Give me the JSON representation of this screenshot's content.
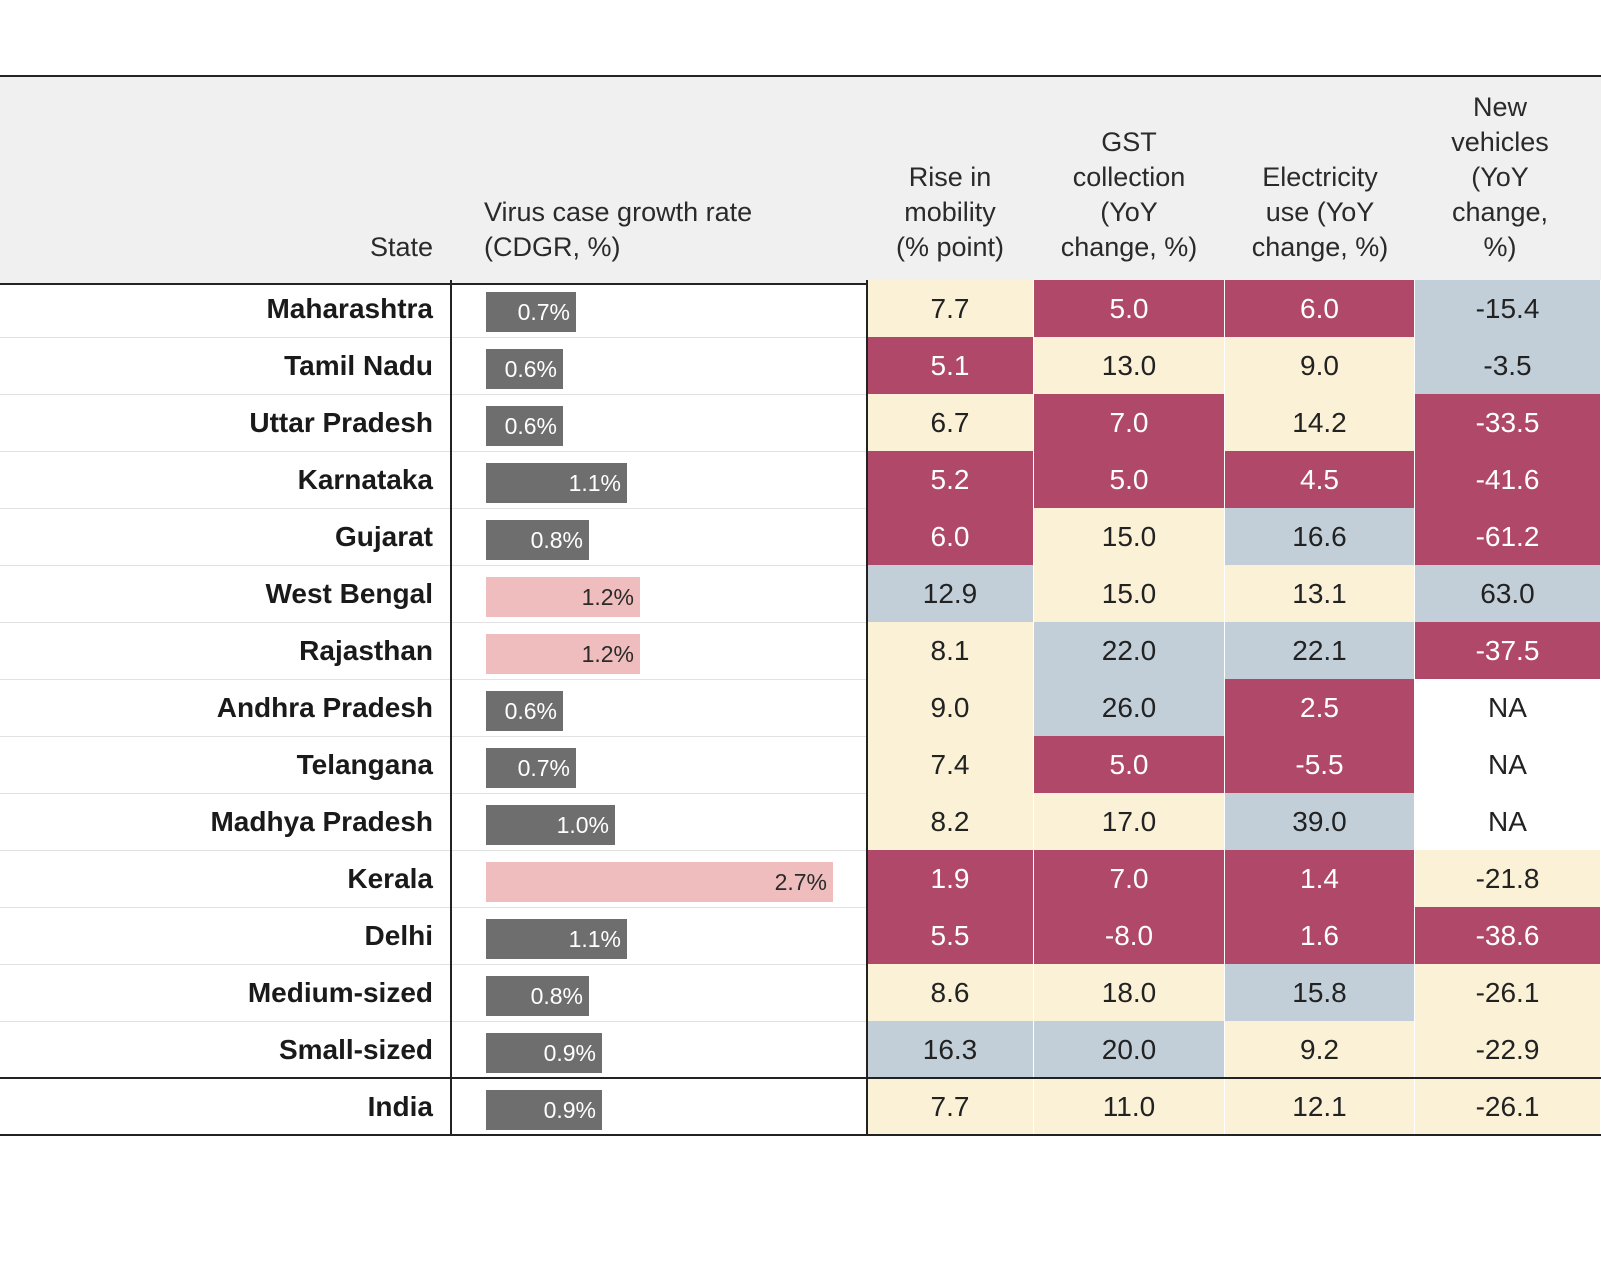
{
  "header": {
    "state": "State",
    "cdgr": "Virus case growth rate (CDGR, %)",
    "mobility": "Rise in mobility (% point)",
    "gst": "GST collection (YoY change, %)",
    "electricity": "Electricity use (YoY change, %)",
    "vehicles": "New vehicles (YoY change, %)"
  },
  "colors": {
    "bar_dark": "#6e6e6e",
    "bar_pink": "#efbdbd",
    "low": "#b0486a",
    "mid": "#fbf1d6",
    "high": "#c2cfd8",
    "na": "#ffffff"
  },
  "chart_data": {
    "type": "table",
    "columns": [
      "State",
      "Virus case growth rate (CDGR, %)",
      "Rise in mobility (% point)",
      "GST collection (YoY change, %)",
      "Electricity use (YoY change, %)",
      "New vehicles (YoY change, %)"
    ],
    "rows": [
      {
        "state": "Maharashtra",
        "cdgr": 0.7,
        "cdgr_label": "0.7%",
        "cdgr_color": "dark",
        "mobility": {
          "v": "7.7",
          "c": "mid"
        },
        "gst": {
          "v": "5.0",
          "c": "low"
        },
        "electricity": {
          "v": "6.0",
          "c": "low"
        },
        "vehicles": {
          "v": "-15.4",
          "c": "high"
        }
      },
      {
        "state": "Tamil Nadu",
        "cdgr": 0.6,
        "cdgr_label": "0.6%",
        "cdgr_color": "dark",
        "mobility": {
          "v": "5.1",
          "c": "low"
        },
        "gst": {
          "v": "13.0",
          "c": "mid"
        },
        "electricity": {
          "v": "9.0",
          "c": "mid"
        },
        "vehicles": {
          "v": "-3.5",
          "c": "high"
        }
      },
      {
        "state": "Uttar Pradesh",
        "cdgr": 0.6,
        "cdgr_label": "0.6%",
        "cdgr_color": "dark",
        "mobility": {
          "v": "6.7",
          "c": "mid"
        },
        "gst": {
          "v": "7.0",
          "c": "low"
        },
        "electricity": {
          "v": "14.2",
          "c": "mid"
        },
        "vehicles": {
          "v": "-33.5",
          "c": "low"
        }
      },
      {
        "state": "Karnataka",
        "cdgr": 1.1,
        "cdgr_label": "1.1%",
        "cdgr_color": "dark",
        "mobility": {
          "v": "5.2",
          "c": "low"
        },
        "gst": {
          "v": "5.0",
          "c": "low"
        },
        "electricity": {
          "v": "4.5",
          "c": "low"
        },
        "vehicles": {
          "v": "-41.6",
          "c": "low"
        }
      },
      {
        "state": "Gujarat",
        "cdgr": 0.8,
        "cdgr_label": "0.8%",
        "cdgr_color": "dark",
        "mobility": {
          "v": "6.0",
          "c": "low"
        },
        "gst": {
          "v": "15.0",
          "c": "mid"
        },
        "electricity": {
          "v": "16.6",
          "c": "high"
        },
        "vehicles": {
          "v": "-61.2",
          "c": "low"
        }
      },
      {
        "state": "West Bengal",
        "cdgr": 1.2,
        "cdgr_label": "1.2%",
        "cdgr_color": "pink",
        "mobility": {
          "v": "12.9",
          "c": "high"
        },
        "gst": {
          "v": "15.0",
          "c": "mid"
        },
        "electricity": {
          "v": "13.1",
          "c": "mid"
        },
        "vehicles": {
          "v": "63.0",
          "c": "high"
        }
      },
      {
        "state": "Rajasthan",
        "cdgr": 1.2,
        "cdgr_label": "1.2%",
        "cdgr_color": "pink",
        "mobility": {
          "v": "8.1",
          "c": "mid"
        },
        "gst": {
          "v": "22.0",
          "c": "high"
        },
        "electricity": {
          "v": "22.1",
          "c": "high"
        },
        "vehicles": {
          "v": "-37.5",
          "c": "low"
        }
      },
      {
        "state": "Andhra Pradesh",
        "cdgr": 0.6,
        "cdgr_label": "0.6%",
        "cdgr_color": "dark",
        "mobility": {
          "v": "9.0",
          "c": "mid"
        },
        "gst": {
          "v": "26.0",
          "c": "high"
        },
        "electricity": {
          "v": "2.5",
          "c": "low"
        },
        "vehicles": {
          "v": "NA",
          "c": "na"
        }
      },
      {
        "state": "Telangana",
        "cdgr": 0.7,
        "cdgr_label": "0.7%",
        "cdgr_color": "dark",
        "mobility": {
          "v": "7.4",
          "c": "mid"
        },
        "gst": {
          "v": "5.0",
          "c": "low"
        },
        "electricity": {
          "v": "-5.5",
          "c": "low"
        },
        "vehicles": {
          "v": "NA",
          "c": "na"
        }
      },
      {
        "state": "Madhya Pradesh",
        "cdgr": 1.0,
        "cdgr_label": "1.0%",
        "cdgr_color": "dark",
        "mobility": {
          "v": "8.2",
          "c": "mid"
        },
        "gst": {
          "v": "17.0",
          "c": "mid"
        },
        "electricity": {
          "v": "39.0",
          "c": "high"
        },
        "vehicles": {
          "v": "NA",
          "c": "na"
        }
      },
      {
        "state": "Kerala",
        "cdgr": 2.7,
        "cdgr_label": "2.7%",
        "cdgr_color": "pink",
        "mobility": {
          "v": "1.9",
          "c": "low"
        },
        "gst": {
          "v": "7.0",
          "c": "low"
        },
        "electricity": {
          "v": "1.4",
          "c": "low"
        },
        "vehicles": {
          "v": "-21.8",
          "c": "mid"
        }
      },
      {
        "state": "Delhi",
        "cdgr": 1.1,
        "cdgr_label": "1.1%",
        "cdgr_color": "dark",
        "mobility": {
          "v": "5.5",
          "c": "low"
        },
        "gst": {
          "v": "-8.0",
          "c": "low"
        },
        "electricity": {
          "v": "1.6",
          "c": "low"
        },
        "vehicles": {
          "v": "-38.6",
          "c": "low"
        }
      },
      {
        "state": "Medium-sized",
        "cdgr": 0.8,
        "cdgr_label": "0.8%",
        "cdgr_color": "dark",
        "mobility": {
          "v": "8.6",
          "c": "mid"
        },
        "gst": {
          "v": "18.0",
          "c": "mid"
        },
        "electricity": {
          "v": "15.8",
          "c": "high"
        },
        "vehicles": {
          "v": "-26.1",
          "c": "mid"
        }
      },
      {
        "state": "Small-sized",
        "cdgr": 0.9,
        "cdgr_label": "0.9%",
        "cdgr_color": "dark",
        "mobility": {
          "v": "16.3",
          "c": "high"
        },
        "gst": {
          "v": "20.0",
          "c": "high"
        },
        "electricity": {
          "v": "9.2",
          "c": "mid"
        },
        "vehicles": {
          "v": "-22.9",
          "c": "mid"
        }
      }
    ],
    "total": {
      "state": "India",
      "cdgr": 0.9,
      "cdgr_label": "0.9%",
      "cdgr_color": "dark",
      "mobility": {
        "v": "7.7",
        "c": "mid"
      },
      "gst": {
        "v": "11.0",
        "c": "mid"
      },
      "electricity": {
        "v": "12.1",
        "c": "mid"
      },
      "vehicles": {
        "v": "-26.1",
        "c": "mid"
      }
    }
  }
}
